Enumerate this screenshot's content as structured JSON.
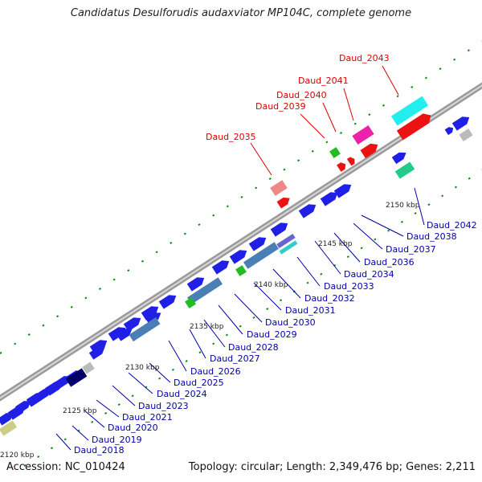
{
  "title": "Candidatus Desulforudis audaxviator MP104C, complete genome",
  "footer": {
    "accession": "Accession: NC_010424",
    "summary": "Topology: circular; Length: 2,349,476 bp; Genes: 2,211"
  },
  "colors": {
    "backbone": "#8c8c8c",
    "cds_blue": "#1f1fe6",
    "rna_steel": "#4a7fb5",
    "green": "#22bb22",
    "highlight_red": "#ee1111",
    "label_blue": "#0000aa",
    "label_red": "#dd0000",
    "tick_green": "#118811"
  },
  "scale_labels": [
    "2120 kbp",
    "2125 kbp",
    "2130 kbp",
    "2135 kbp",
    "2140 kbp",
    "2145 kbp",
    "2150 kbp"
  ],
  "gene_labels_blue": [
    "Daud_2018",
    "Daud_2019",
    "Daud_2020",
    "Daud_2021",
    "Daud_2023",
    "Daud_2024",
    "Daud_2025",
    "Daud_2026",
    "Daud_2027",
    "Daud_2028",
    "Daud_2029",
    "Daud_2030",
    "Daud_2031",
    "Daud_2032",
    "Daud_2033",
    "Daud_2034",
    "Daud_2036",
    "Daud_2037",
    "Daud_2038",
    "Daud_2042"
  ],
  "gene_labels_red": [
    "Daud_2035",
    "Daud_2039",
    "Daud_2040",
    "Daud_2041",
    "Daud_2043"
  ]
}
